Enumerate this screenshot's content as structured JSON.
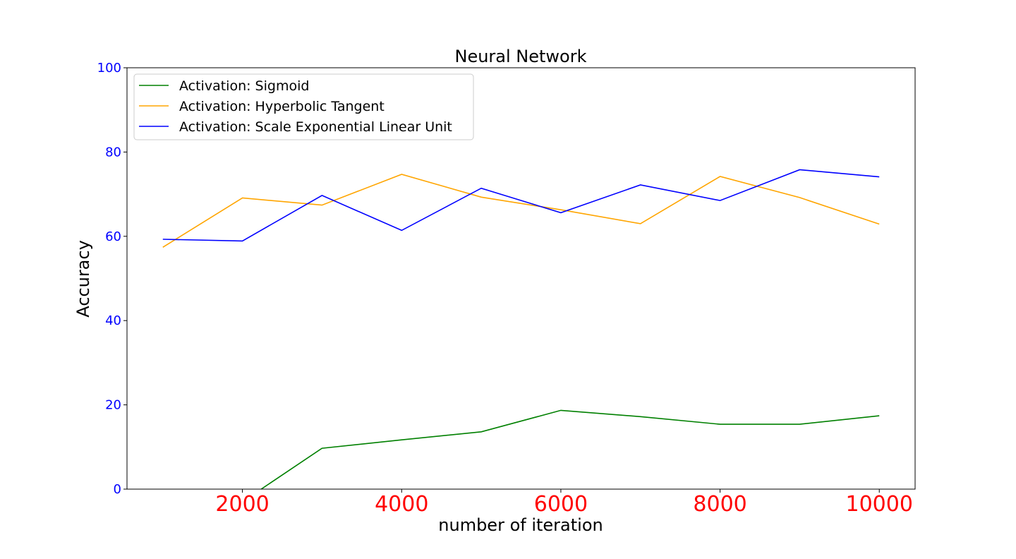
{
  "chart_data": {
    "type": "line",
    "title": "Neural Network",
    "xlabel": "number of iteration",
    "ylabel": "Accuracy",
    "xlim": [
      550,
      10450
    ],
    "ylim": [
      0,
      100
    ],
    "xticks": [
      2000,
      4000,
      6000,
      8000,
      10000
    ],
    "yticks": [
      0,
      20,
      40,
      60,
      80,
      100
    ],
    "xtick_color": "#ff0000",
    "ytick_color": "#0000ff",
    "grid": false,
    "legend": {
      "position": "upper-left"
    },
    "x": [
      1000,
      2000,
      3000,
      4000,
      5000,
      6000,
      7000,
      8000,
      9000,
      10000
    ],
    "series": [
      {
        "name": "Activation: Sigmoid",
        "color": "#008000",
        "values": [
          -8,
          -3,
          9.7,
          11.7,
          13.6,
          18.7,
          17.2,
          15.4,
          15.4,
          17.4
        ]
      },
      {
        "name": "Activation: Hyperbolic Tangent",
        "color": "#ffa500",
        "values": [
          57.4,
          69.1,
          67.4,
          74.7,
          69.3,
          66.3,
          63.0,
          74.2,
          69.2,
          62.9
        ]
      },
      {
        "name": "Activation: Scale Exponential Linear Unit",
        "color": "#0000ff",
        "values": [
          59.3,
          58.9,
          69.7,
          61.4,
          71.4,
          65.6,
          72.2,
          68.5,
          75.8,
          74.1
        ]
      }
    ]
  }
}
